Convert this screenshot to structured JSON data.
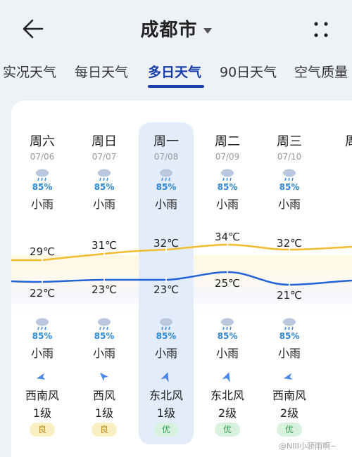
{
  "header": {
    "title": "成都市",
    "back_icon": "back-arrow-icon",
    "more_icon": "more-dots-icon"
  },
  "tabs": [
    {
      "label": "实况天气",
      "active": false
    },
    {
      "label": "每日天气",
      "active": false
    },
    {
      "label": "多日天气",
      "active": true
    },
    {
      "label": "90日天气",
      "active": false
    },
    {
      "label": "空气质量",
      "active": false
    }
  ],
  "days": [
    {
      "day": "周六",
      "date": "07/06",
      "pct_day": "85%",
      "cond_day": "小雨",
      "high": "29℃",
      "low": "22℃",
      "pct_night": "85%",
      "cond_night": "小雨",
      "wind": "西南风",
      "level": "1级",
      "aqi": "良"
    },
    {
      "day": "周日",
      "date": "07/07",
      "pct_day": "85%",
      "cond_day": "小雨",
      "high": "31℃",
      "low": "23℃",
      "pct_night": "85%",
      "cond_night": "小雨",
      "wind": "西风",
      "level": "1级",
      "aqi": "良"
    },
    {
      "day": "周一",
      "date": "07/08",
      "pct_day": "85%",
      "cond_day": "小雨",
      "high": "32℃",
      "low": "23℃",
      "pct_night": "85%",
      "cond_night": "小雨",
      "wind": "东北风",
      "level": "1级",
      "aqi": "优"
    },
    {
      "day": "周二",
      "date": "07/09",
      "pct_day": "85%",
      "cond_day": "小雨",
      "high": "34℃",
      "low": "25℃",
      "pct_night": "85%",
      "cond_night": "小雨",
      "wind": "东北风",
      "level": "2级",
      "aqi": "优"
    },
    {
      "day": "周三",
      "date": "07/10",
      "pct_day": "85%",
      "cond_day": "小雨",
      "high": "32℃",
      "low": "21℃",
      "pct_night": "85%",
      "cond_night": "小雨",
      "wind": "西南风",
      "level": "2级",
      "aqi": "优"
    },
    {
      "day": "周"
    }
  ],
  "colors": {
    "accent": "#1a3ea8",
    "high_line": "#f2bb2e",
    "low_line": "#2263d8"
  },
  "watermark": "@NIII小骄雨啊~"
}
